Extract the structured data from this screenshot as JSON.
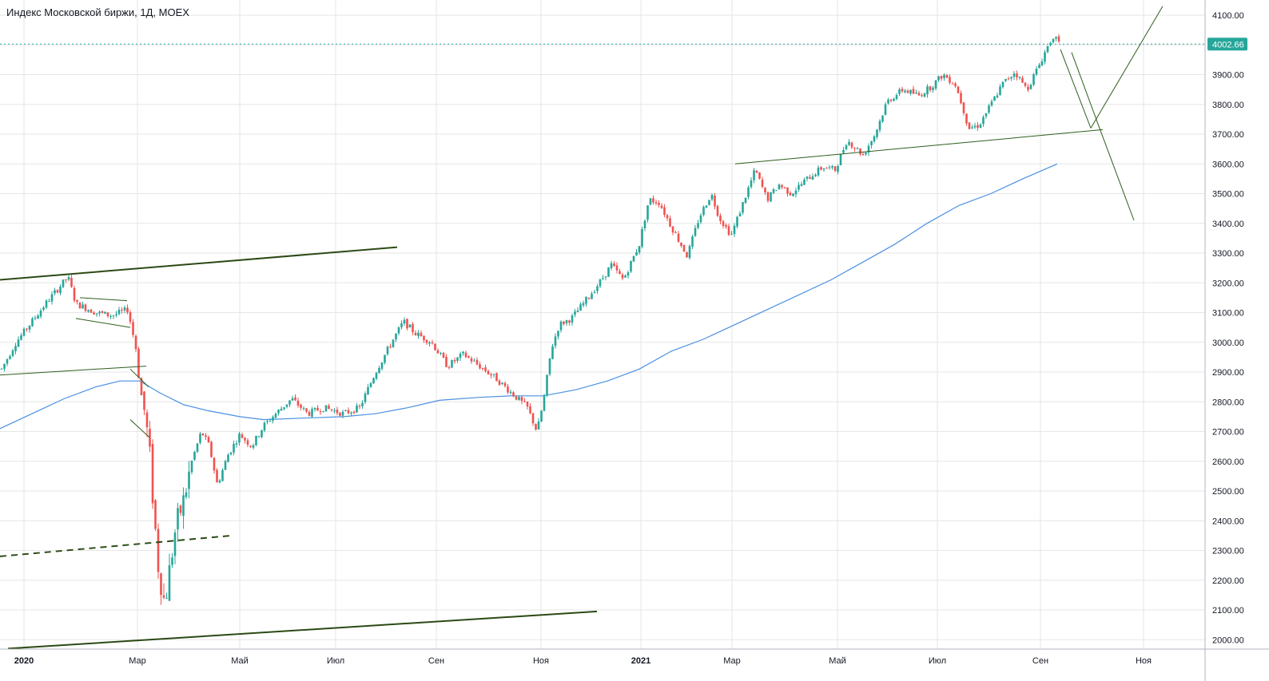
{
  "title": "Индекс Московской биржи, 1Д, MOEX",
  "colors": {
    "up": "#26a69a",
    "down": "#ef5350",
    "ma": "#4a90e2",
    "trend": "#2e5e1e",
    "grid": "#e6e6e6",
    "last_badge": "#26a69a"
  },
  "last_price": "4002.66",
  "chart_data": {
    "type": "candlestick",
    "title": "Индекс Московской биржи, 1Д, MOEX",
    "y_ticks": [
      "4100.00",
      "4000.00",
      "3900.00",
      "3800.00",
      "3700.00",
      "3600.00",
      "3500.00",
      "3400.00",
      "3300.00",
      "3200.00",
      "3100.00",
      "3000.00",
      "2900.00",
      "2800.00",
      "2700.00",
      "2600.00",
      "2500.00",
      "2400.00",
      "2300.00",
      "2200.00",
      "2100.00",
      "2000.00"
    ],
    "ylim": [
      1960,
      4130
    ],
    "x_ticks": [
      "2020",
      "Мар",
      "Май",
      "Июл",
      "Сен",
      "Ноя",
      "2021",
      "Мар",
      "Май",
      "Июл",
      "Сен",
      "Ноя"
    ],
    "x_bold_ticks": [
      "2020",
      "2021"
    ],
    "price_path": [
      [
        0,
        2900
      ],
      [
        20,
        3000
      ],
      [
        40,
        3070
      ],
      [
        60,
        3140
      ],
      [
        85,
        3220
      ],
      [
        95,
        3130
      ],
      [
        120,
        3100
      ],
      [
        140,
        3090
      ],
      [
        160,
        3110
      ],
      [
        170,
        2980
      ],
      [
        175,
        2850
      ],
      [
        182,
        2750
      ],
      [
        188,
        2600
      ],
      [
        192,
        2450
      ],
      [
        198,
        2250
      ],
      [
        206,
        2120
      ],
      [
        212,
        2230
      ],
      [
        220,
        2380
      ],
      [
        230,
        2470
      ],
      [
        240,
        2600
      ],
      [
        252,
        2700
      ],
      [
        262,
        2650
      ],
      [
        272,
        2520
      ],
      [
        285,
        2620
      ],
      [
        300,
        2690
      ],
      [
        315,
        2650
      ],
      [
        330,
        2720
      ],
      [
        345,
        2760
      ],
      [
        365,
        2810
      ],
      [
        385,
        2760
      ],
      [
        405,
        2780
      ],
      [
        430,
        2760
      ],
      [
        450,
        2780
      ],
      [
        470,
        2900
      ],
      [
        490,
        3000
      ],
      [
        505,
        3070
      ],
      [
        520,
        3030
      ],
      [
        540,
        3000
      ],
      [
        560,
        2920
      ],
      [
        580,
        2960
      ],
      [
        600,
        2920
      ],
      [
        620,
        2880
      ],
      [
        640,
        2830
      ],
      [
        660,
        2780
      ],
      [
        672,
        2700
      ],
      [
        680,
        2800
      ],
      [
        690,
        2980
      ],
      [
        700,
        3060
      ],
      [
        715,
        3080
      ],
      [
        730,
        3130
      ],
      [
        750,
        3200
      ],
      [
        765,
        3260
      ],
      [
        780,
        3210
      ],
      [
        800,
        3330
      ],
      [
        812,
        3480
      ],
      [
        825,
        3470
      ],
      [
        838,
        3400
      ],
      [
        850,
        3340
      ],
      [
        860,
        3290
      ],
      [
        875,
        3420
      ],
      [
        890,
        3500
      ],
      [
        900,
        3420
      ],
      [
        915,
        3360
      ],
      [
        930,
        3470
      ],
      [
        945,
        3580
      ],
      [
        960,
        3480
      ],
      [
        975,
        3530
      ],
      [
        990,
        3500
      ],
      [
        1010,
        3550
      ],
      [
        1030,
        3590
      ],
      [
        1045,
        3580
      ],
      [
        1060,
        3680
      ],
      [
        1080,
        3630
      ],
      [
        1095,
        3700
      ],
      [
        1110,
        3810
      ],
      [
        1130,
        3850
      ],
      [
        1150,
        3830
      ],
      [
        1165,
        3860
      ],
      [
        1180,
        3900
      ],
      [
        1195,
        3870
      ],
      [
        1205,
        3790
      ],
      [
        1212,
        3720
      ],
      [
        1225,
        3730
      ],
      [
        1240,
        3800
      ],
      [
        1255,
        3870
      ],
      [
        1270,
        3910
      ],
      [
        1285,
        3850
      ],
      [
        1300,
        3930
      ],
      [
        1310,
        3990
      ],
      [
        1318,
        4030
      ],
      [
        1325,
        4003
      ]
    ],
    "ma_path": [
      [
        0,
        2710
      ],
      [
        40,
        2760
      ],
      [
        80,
        2810
      ],
      [
        120,
        2850
      ],
      [
        150,
        2870
      ],
      [
        175,
        2870
      ],
      [
        200,
        2830
      ],
      [
        230,
        2790
      ],
      [
        260,
        2770
      ],
      [
        300,
        2750
      ],
      [
        330,
        2740
      ],
      [
        380,
        2745
      ],
      [
        430,
        2750
      ],
      [
        470,
        2760
      ],
      [
        510,
        2780
      ],
      [
        550,
        2805
      ],
      [
        600,
        2815
      ],
      [
        640,
        2820
      ],
      [
        680,
        2820
      ],
      [
        720,
        2840
      ],
      [
        760,
        2870
      ],
      [
        800,
        2910
      ],
      [
        840,
        2970
      ],
      [
        880,
        3010
      ],
      [
        920,
        3060
      ],
      [
        960,
        3110
      ],
      [
        1000,
        3160
      ],
      [
        1040,
        3210
      ],
      [
        1080,
        3270
      ],
      [
        1120,
        3330
      ],
      [
        1160,
        3400
      ],
      [
        1200,
        3460
      ],
      [
        1240,
        3500
      ],
      [
        1280,
        3550
      ],
      [
        1323,
        3600
      ]
    ],
    "trend_lines": [
      {
        "style": "thick",
        "p": [
          [
            0,
            3210
          ],
          [
            497,
            3320
          ]
        ]
      },
      {
        "style": "thick",
        "p": [
          [
            10,
            1970
          ],
          [
            747,
            2095
          ]
        ]
      },
      {
        "style": "dashed",
        "p": [
          [
            0,
            2280
          ],
          [
            290,
            2350
          ]
        ]
      },
      {
        "style": "thin",
        "p": [
          [
            0,
            2890
          ],
          [
            183,
            2920
          ]
        ]
      },
      {
        "style": "thin",
        "p": [
          [
            100,
            3150
          ],
          [
            159,
            3140
          ]
        ]
      },
      {
        "style": "thin",
        "p": [
          [
            95,
            3080
          ],
          [
            163,
            3050
          ]
        ]
      },
      {
        "style": "thin",
        "p": [
          [
            163,
            2910
          ],
          [
            186,
            2850
          ]
        ]
      },
      {
        "style": "thin",
        "p": [
          [
            163,
            2740
          ],
          [
            187,
            2680
          ]
        ]
      },
      {
        "style": "thin",
        "p": [
          [
            920,
            3600
          ],
          [
            1380,
            3715
          ]
        ]
      },
      {
        "style": "thin",
        "p": [
          [
            1327,
            3985
          ],
          [
            1365,
            3720
          ]
        ]
      },
      {
        "style": "thin",
        "p": [
          [
            1341,
            3975
          ],
          [
            1378,
            3705
          ],
          [
            1419,
            3410
          ]
        ]
      },
      {
        "style": "thin",
        "p": [
          [
            1365,
            3720
          ],
          [
            1455,
            4130
          ]
        ]
      }
    ]
  }
}
